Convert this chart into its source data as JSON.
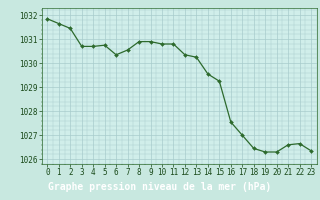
{
  "x": [
    0,
    1,
    2,
    3,
    4,
    5,
    6,
    7,
    8,
    9,
    10,
    11,
    12,
    13,
    14,
    15,
    16,
    17,
    18,
    19,
    20,
    21,
    22,
    23
  ],
  "y": [
    1031.85,
    1031.65,
    1031.45,
    1030.7,
    1030.7,
    1030.75,
    1030.35,
    1030.55,
    1030.9,
    1030.9,
    1030.8,
    1030.8,
    1030.35,
    1030.25,
    1029.55,
    1029.25,
    1027.55,
    1027.0,
    1026.45,
    1026.3,
    1026.3,
    1026.6,
    1026.65,
    1026.35
  ],
  "line_color": "#2d6a2d",
  "marker": "D",
  "marker_size": 2.0,
  "linewidth": 0.9,
  "bg_color": "#c8e8e0",
  "plot_bg_color": "#d0eeea",
  "grid_color": "#a8cccc",
  "xlabel": "Graphe pression niveau de la mer (hPa)",
  "xlabel_color": "#ffffff",
  "xlabel_bg": "#2d6a2d",
  "xlabel_fontsize": 7.0,
  "tick_color": "#1a4a1a",
  "tick_fontsize": 5.5,
  "xlim": [
    -0.5,
    23.5
  ],
  "ylim": [
    1025.8,
    1032.3
  ],
  "yticks": [
    1026,
    1027,
    1028,
    1029,
    1030,
    1031,
    1032
  ],
  "xticks": [
    0,
    1,
    2,
    3,
    4,
    5,
    6,
    7,
    8,
    9,
    10,
    11,
    12,
    13,
    14,
    15,
    16,
    17,
    18,
    19,
    20,
    21,
    22,
    23
  ]
}
